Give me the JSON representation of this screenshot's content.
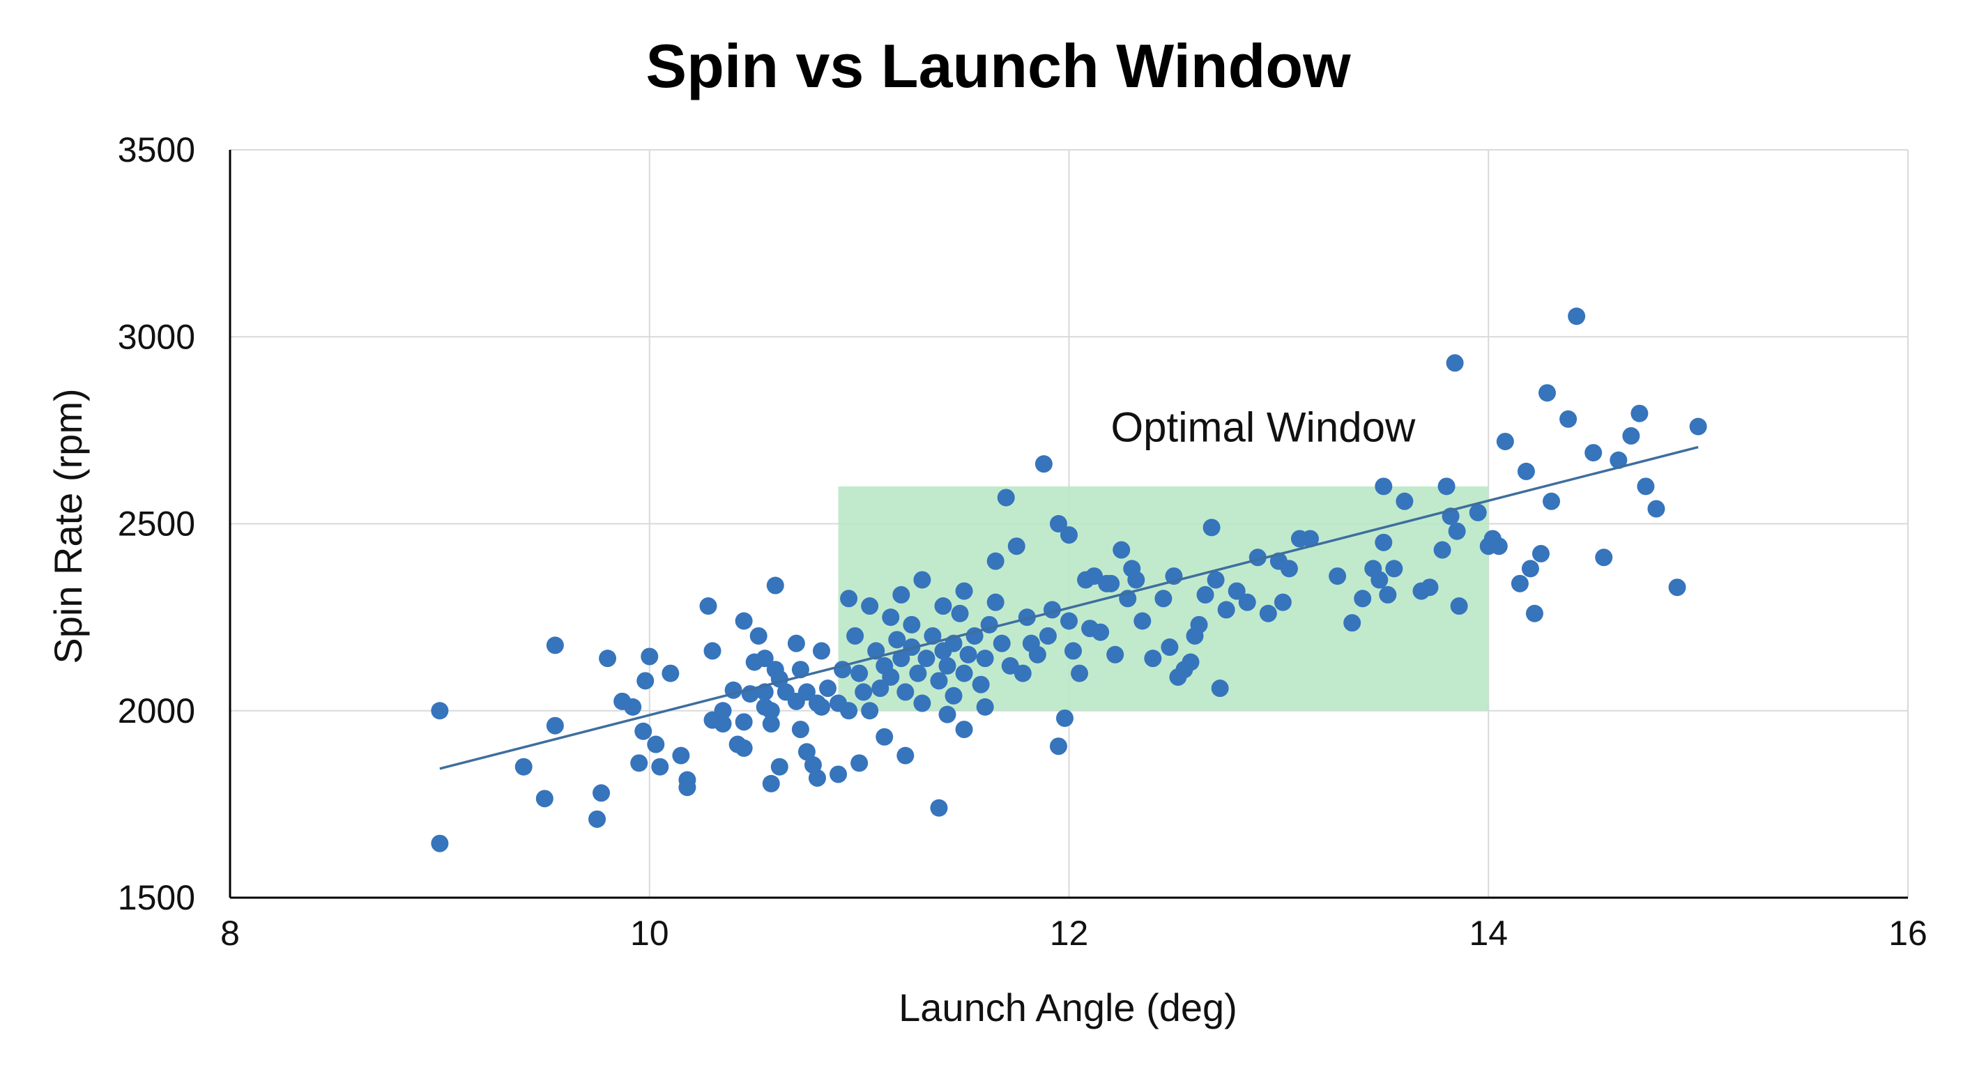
{
  "chart_data": {
    "type": "scatter",
    "title": "Spin vs Launch Window",
    "xlabel": "Launch Angle (deg)",
    "ylabel": "Spin Rate (rpm)",
    "xlim": [
      8,
      16
    ],
    "ylim": [
      1500,
      3500
    ],
    "x_ticks": [
      "8",
      "10",
      "12",
      "14",
      "16"
    ],
    "y_ticks": [
      "1500",
      "2000",
      "2500",
      "3000",
      "3500"
    ],
    "grid": true,
    "colors": {
      "points": "#3674BC",
      "trendline": "#3E6E9E",
      "window_fill": "#B6E6C4",
      "grid": "#D9D9D9",
      "axis": "#000000"
    },
    "window": {
      "label": "Optimal Window",
      "x": [
        10.9,
        14.0
      ],
      "y": [
        2000,
        2600
      ]
    },
    "trendline": {
      "x": [
        9.0,
        15.0
      ],
      "y": [
        1845,
        2705
      ]
    },
    "points": [
      [
        9.0,
        2000
      ],
      [
        9.0,
        1645
      ],
      [
        9.4,
        1850
      ],
      [
        9.5,
        1765
      ],
      [
        9.55,
        1960
      ],
      [
        9.55,
        2175
      ],
      [
        9.75,
        1710
      ],
      [
        9.77,
        1780
      ],
      [
        9.8,
        2140
      ],
      [
        9.87,
        2025
      ],
      [
        9.92,
        2010
      ],
      [
        9.95,
        1860
      ],
      [
        9.98,
        2080
      ],
      [
        9.97,
        1945
      ],
      [
        10.0,
        2145
      ],
      [
        10.03,
        1910
      ],
      [
        10.05,
        1850
      ],
      [
        10.1,
        2100
      ],
      [
        10.15,
        1880
      ],
      [
        10.18,
        1795
      ],
      [
        10.18,
        1815
      ],
      [
        10.28,
        2280
      ],
      [
        10.3,
        1975
      ],
      [
        10.3,
        2160
      ],
      [
        10.35,
        2000
      ],
      [
        10.35,
        1965
      ],
      [
        10.4,
        2055
      ],
      [
        10.42,
        1910
      ],
      [
        10.45,
        1900
      ],
      [
        10.45,
        1970
      ],
      [
        10.48,
        2045
      ],
      [
        10.45,
        2240
      ],
      [
        10.5,
        2130
      ],
      [
        10.52,
        2200
      ],
      [
        10.55,
        2010
      ],
      [
        10.55,
        2050
      ],
      [
        10.58,
        2000
      ],
      [
        10.58,
        1965
      ],
      [
        10.6,
        2110
      ],
      [
        10.62,
        2085
      ],
      [
        10.55,
        2140
      ],
      [
        10.58,
        1805
      ],
      [
        10.62,
        1850
      ],
      [
        10.6,
        2335
      ],
      [
        10.65,
        2050
      ],
      [
        10.7,
        2025
      ],
      [
        10.72,
        2110
      ],
      [
        10.75,
        1890
      ],
      [
        10.72,
        1950
      ],
      [
        10.7,
        2180
      ],
      [
        10.75,
        2050
      ],
      [
        10.8,
        2020
      ],
      [
        10.78,
        1855
      ],
      [
        10.8,
        1820
      ],
      [
        10.82,
        2010
      ],
      [
        10.82,
        2160
      ],
      [
        10.85,
        2060
      ],
      [
        10.9,
        2020
      ],
      [
        10.92,
        2110
      ],
      [
        10.95,
        2000
      ],
      [
        10.95,
        2300
      ],
      [
        10.98,
        2200
      ],
      [
        11.0,
        2100
      ],
      [
        11.02,
        2050
      ],
      [
        11.05,
        2000
      ],
      [
        11.05,
        2280
      ],
      [
        11.08,
        2160
      ],
      [
        11.1,
        2060
      ],
      [
        11.12,
        2120
      ],
      [
        11.15,
        2090
      ],
      [
        11.15,
        2250
      ],
      [
        11.18,
        2190
      ],
      [
        11.2,
        2140
      ],
      [
        11.2,
        2310
      ],
      [
        11.22,
        2050
      ],
      [
        11.25,
        2170
      ],
      [
        11.25,
        2230
      ],
      [
        11.28,
        2100
      ],
      [
        11.3,
        2020
      ],
      [
        11.3,
        2350
      ],
      [
        11.32,
        2140
      ],
      [
        11.35,
        2200
      ],
      [
        11.38,
        2080
      ],
      [
        11.4,
        2160
      ],
      [
        11.4,
        2280
      ],
      [
        11.42,
        2120
      ],
      [
        11.45,
        2040
      ],
      [
        11.45,
        2180
      ],
      [
        11.48,
        2260
      ],
      [
        11.5,
        2100
      ],
      [
        11.5,
        2320
      ],
      [
        11.52,
        2150
      ],
      [
        11.55,
        2200
      ],
      [
        11.58,
        2070
      ],
      [
        11.6,
        2140
      ],
      [
        11.62,
        2230
      ],
      [
        11.65,
        2290
      ],
      [
        11.65,
        2400
      ],
      [
        11.68,
        2180
      ],
      [
        11.7,
        2570
      ],
      [
        11.72,
        2120
      ],
      [
        11.75,
        2440
      ],
      [
        11.78,
        2100
      ],
      [
        11.8,
        2250
      ],
      [
        11.82,
        2180
      ],
      [
        11.85,
        2150
      ],
      [
        11.88,
        2660
      ],
      [
        11.9,
        2200
      ],
      [
        11.92,
        2270
      ],
      [
        11.95,
        2500
      ],
      [
        11.95,
        1905
      ],
      [
        11.98,
        1980
      ],
      [
        12.0,
        2470
      ],
      [
        12.0,
        2240
      ],
      [
        12.02,
        2160
      ],
      [
        12.05,
        2100
      ],
      [
        12.08,
        2350
      ],
      [
        12.1,
        2220
      ],
      [
        12.12,
        2360
      ],
      [
        12.15,
        2210
      ],
      [
        12.18,
        2340
      ],
      [
        12.2,
        2340
      ],
      [
        12.22,
        2150
      ],
      [
        12.25,
        2430
      ],
      [
        12.28,
        2300
      ],
      [
        12.3,
        2380
      ],
      [
        12.32,
        2350
      ],
      [
        12.35,
        2240
      ],
      [
        12.4,
        2140
      ],
      [
        12.45,
        2300
      ],
      [
        12.48,
        2170
      ],
      [
        12.5,
        2360
      ],
      [
        12.52,
        2090
      ],
      [
        12.55,
        2110
      ],
      [
        12.58,
        2130
      ],
      [
        12.6,
        2200
      ],
      [
        12.62,
        2230
      ],
      [
        12.65,
        2310
      ],
      [
        12.68,
        2490
      ],
      [
        12.7,
        2350
      ],
      [
        12.72,
        2060
      ],
      [
        12.75,
        2270
      ],
      [
        12.8,
        2320
      ],
      [
        12.85,
        2290
      ],
      [
        12.9,
        2410
      ],
      [
        12.95,
        2260
      ],
      [
        13.0,
        2400
      ],
      [
        13.02,
        2290
      ],
      [
        13.05,
        2380
      ],
      [
        13.1,
        2460
      ],
      [
        13.15,
        2460
      ],
      [
        13.28,
        2360
      ],
      [
        13.35,
        2235
      ],
      [
        13.4,
        2300
      ],
      [
        13.45,
        2380
      ],
      [
        13.48,
        2350
      ],
      [
        13.5,
        2450
      ],
      [
        13.5,
        2600
      ],
      [
        13.52,
        2310
      ],
      [
        13.55,
        2380
      ],
      [
        13.6,
        2560
      ],
      [
        13.68,
        2320
      ],
      [
        13.72,
        2330
      ],
      [
        13.78,
        2430
      ],
      [
        13.8,
        2600
      ],
      [
        13.82,
        2520
      ],
      [
        13.85,
        2480
      ],
      [
        13.86,
        2280
      ],
      [
        13.84,
        2930
      ],
      [
        13.95,
        2530
      ],
      [
        14.0,
        2440
      ],
      [
        14.02,
        2460
      ],
      [
        14.05,
        2440
      ],
      [
        14.08,
        2720
      ],
      [
        14.15,
        2340
      ],
      [
        14.18,
        2640
      ],
      [
        14.2,
        2380
      ],
      [
        14.22,
        2260
      ],
      [
        14.25,
        2420
      ],
      [
        14.28,
        2850
      ],
      [
        14.3,
        2560
      ],
      [
        14.38,
        2780
      ],
      [
        14.42,
        3055
      ],
      [
        14.5,
        2690
      ],
      [
        14.55,
        2410
      ],
      [
        14.62,
        2670
      ],
      [
        14.68,
        2735
      ],
      [
        14.72,
        2795
      ],
      [
        14.75,
        2600
      ],
      [
        14.8,
        2540
      ],
      [
        14.9,
        2330
      ],
      [
        15.0,
        2760
      ],
      [
        11.38,
        1740
      ],
      [
        11.5,
        1950
      ],
      [
        11.42,
        1990
      ],
      [
        11.22,
        1880
      ],
      [
        11.0,
        1860
      ],
      [
        10.9,
        1830
      ],
      [
        11.12,
        1930
      ],
      [
        11.6,
        2010
      ]
    ]
  }
}
